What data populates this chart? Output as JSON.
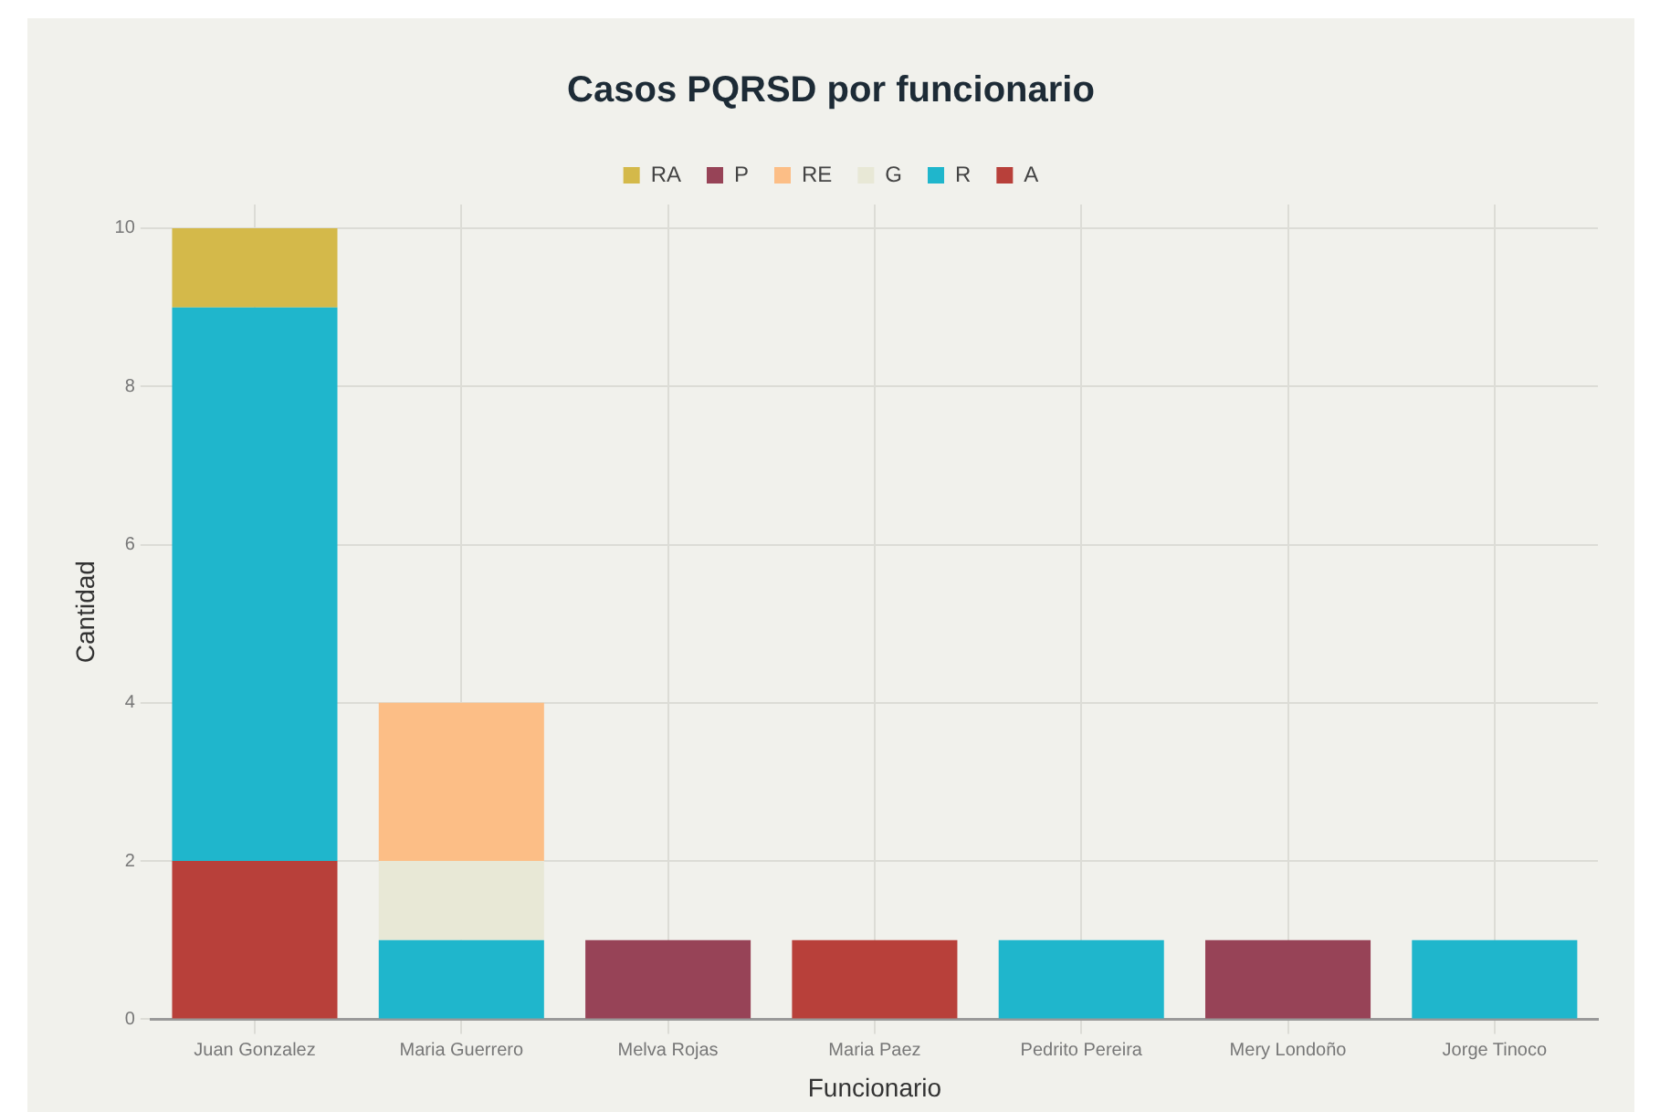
{
  "chart_data": {
    "type": "bar",
    "title": "Casos PQRSD por funcionario",
    "xlabel": "Funcionario",
    "ylabel": "Cantidad",
    "categories": [
      "Juan Gonzalez",
      "Maria Guerrero",
      "Melva Rojas",
      "Maria Paez",
      "Pedrito Pereira",
      "Mery Londoño",
      "Jorge Tinoco"
    ],
    "stacked": true,
    "series": [
      {
        "name": "A",
        "color": "#b8403a",
        "values": [
          2,
          null,
          null,
          1,
          null,
          null,
          null
        ]
      },
      {
        "name": "R",
        "color": "#1fb6cc",
        "values": [
          7,
          1,
          null,
          null,
          1,
          null,
          1
        ]
      },
      {
        "name": "G",
        "color": "#e8e8d6",
        "values": [
          null,
          1,
          null,
          null,
          null,
          null,
          null
        ]
      },
      {
        "name": "RE",
        "color": "#fcbe86",
        "values": [
          null,
          2,
          null,
          null,
          null,
          null,
          null
        ]
      },
      {
        "name": "P",
        "color": "#974357",
        "values": [
          null,
          null,
          1,
          null,
          null,
          1,
          null
        ]
      },
      {
        "name": "RA",
        "color": "#d4b94a",
        "values": [
          1,
          null,
          null,
          null,
          null,
          null,
          null
        ]
      }
    ],
    "ylim": [
      0,
      10.3
    ],
    "yticks": [
      0,
      2,
      4,
      6,
      8,
      10
    ],
    "grid": true,
    "legend": "top"
  }
}
